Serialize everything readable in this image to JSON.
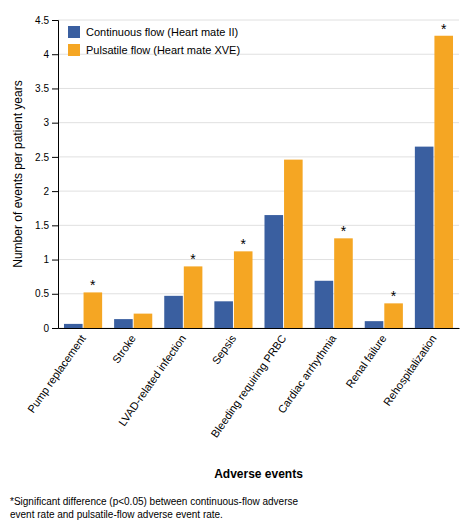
{
  "chart_data": {
    "type": "bar",
    "categories": [
      "Pump replacement",
      "Stroke",
      "LVAD-related infection",
      "Sepsis",
      "Bleeding requiring PRBC",
      "Cardiac arrhythmia",
      "Renal failure",
      "Rehospitalization"
    ],
    "series": [
      {
        "name": "Continuous flow (Heart mate II)",
        "color": "#3a5fa0",
        "values": [
          0.06,
          0.13,
          0.47,
          0.39,
          1.65,
          0.69,
          0.1,
          2.65
        ]
      },
      {
        "name": "Pulsatile flow (Heart mate XVE)",
        "color": "#f5a623",
        "values": [
          0.52,
          0.21,
          0.9,
          1.12,
          2.46,
          1.31,
          0.36,
          4.27
        ]
      }
    ],
    "ylabel": "Number of events per patient years",
    "xlabel": "Adverse events",
    "ylim": [
      0,
      4.5
    ],
    "yticks": [
      0,
      0.5,
      1,
      1.5,
      2,
      2.5,
      3,
      3.5,
      4,
      4.5
    ],
    "grid": true,
    "legend": "top-left",
    "annotations": [
      {
        "text": "*",
        "category": "Pump replacement",
        "series": "Pulsatile flow (Heart mate XVE)"
      },
      {
        "text": "*",
        "category": "LVAD-related infection",
        "series": "Pulsatile flow (Heart mate XVE)"
      },
      {
        "text": "*",
        "category": "Sepsis",
        "series": "Pulsatile flow (Heart mate XVE)"
      },
      {
        "text": "*",
        "category": "Cardiac arrhythmia",
        "series": "Pulsatile flow (Heart mate XVE)"
      },
      {
        "text": "*",
        "category": "Renal failure",
        "series": "Pulsatile flow (Heart mate XVE)"
      },
      {
        "text": "*",
        "category": "Rehospitalization",
        "series": "Pulsatile flow (Heart mate XVE)"
      }
    ],
    "footnote": "*Significant difference (p<0.05) between continuous-flow adverse\nevent rate and pulsatile-flow adverse event rate."
  }
}
